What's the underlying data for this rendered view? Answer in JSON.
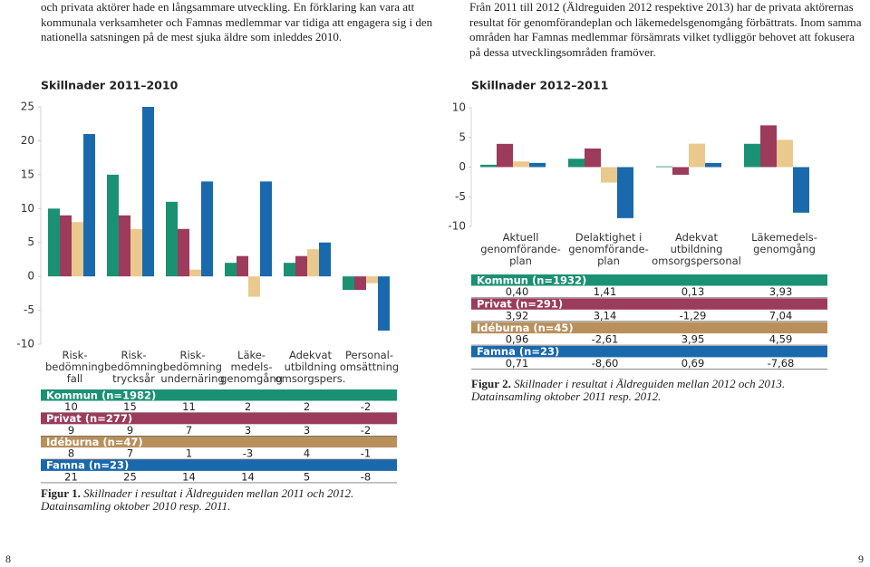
{
  "page": {
    "left_text": [
      "och privata aktörer hade en långsammare utveckling. En förklaring kan vara att",
      "kommunala verksamheter och Famnas medlemmar var tidiga att engagera sig i den",
      "nationella satsningen på de mest sjuka äldre som inleddes 2010."
    ],
    "right_text": [
      "Från 2011 till 2012 (Äldreguiden 2012 respektive 2013) har de privata aktörernas",
      "resultat för genomförandeplan och läkemedelsgenomgång förbättrats. Inom samma",
      "områden har Famnas medlemmar försämrats vilket tydliggör behovet att fokusera",
      "på dessa utvecklingsområden framöver."
    ],
    "page_numbers": [
      8,
      9
    ]
  },
  "chart_data": [
    {
      "type": "bar",
      "title": "Skillnader 2011–2010",
      "categories": [
        "Risk-\nbedömning\nfall",
        "Risk-\nbedömning\ntrycksår",
        "Risk-\nbedömning\nundernäring",
        "Läke-\nmedels-\ngenomgång",
        "Adekvat\nutbildning\nomsorgspers.",
        "Personal-\nomsättning"
      ],
      "series": [
        {
          "name": "Kommun (n=1982)",
          "color": "#1b9173",
          "band_color": "#1b9173",
          "values": [
            10,
            15,
            11,
            2,
            2,
            -2
          ]
        },
        {
          "name": "Privat (n=277)",
          "color": "#9c3b5c",
          "band_color": "#9c3b5c",
          "values": [
            9,
            9,
            7,
            3,
            3,
            -2
          ]
        },
        {
          "name": "Idéburna (n=47)",
          "color": "#e9c98d",
          "band_color": "#b9905c",
          "values": [
            8,
            7,
            1,
            -3,
            4,
            -1
          ]
        },
        {
          "name": "Famna (n=23)",
          "color": "#1a69ad",
          "band_color": "#1a69ad",
          "values": [
            21,
            25,
            14,
            14,
            5,
            -8
          ]
        }
      ],
      "ylim": [
        -10,
        25
      ],
      "yticks": [
        25,
        20,
        15,
        10,
        5,
        0,
        -5,
        -10
      ],
      "grid": false,
      "caption": {
        "label": "Figur 1.",
        "lines": [
          "Skillnader i resultat i Äldreguiden mellan 2011 och 2012.",
          "Datainsamling oktober 2010 resp. 2011."
        ]
      }
    },
    {
      "type": "bar",
      "title": "Skillnader 2012–2011",
      "categories": [
        "Aktuell\ngenomförande-\nplan",
        "Delaktighet i\ngenomförande-\nplan",
        "Adekvat\nutbildning\nomsorgspersonal",
        "Läkemedels-\ngenomgång"
      ],
      "series": [
        {
          "name": "Kommun (n=1932)",
          "color": "#1b9173",
          "band_color": "#1b9173",
          "values": [
            0.4,
            1.41,
            0.13,
            3.93
          ],
          "value_labels": [
            "0,40",
            "1,41",
            "0,13",
            "3,93"
          ]
        },
        {
          "name": "Privat (n=291)",
          "color": "#9c3b5c",
          "band_color": "#9c3b5c",
          "values": [
            3.92,
            3.14,
            -1.29,
            7.04
          ],
          "value_labels": [
            "3,92",
            "3,14",
            "-1,29",
            "7,04"
          ]
        },
        {
          "name": "Idéburna (n=45)",
          "color": "#e9c98d",
          "band_color": "#b9905c",
          "values": [
            0.96,
            -2.61,
            3.95,
            4.59
          ],
          "value_labels": [
            "0,96",
            "-2,61",
            "3,95",
            "4,59"
          ]
        },
        {
          "name": "Famna (n=23)",
          "color": "#1a69ad",
          "band_color": "#1a69ad",
          "values": [
            0.71,
            -8.6,
            0.69,
            -7.68
          ],
          "value_labels": [
            "0,71",
            "-8,60",
            "0,69",
            "-7,68"
          ]
        }
      ],
      "ylim": [
        -10,
        10
      ],
      "yticks": [
        10,
        5,
        0,
        -5,
        -10
      ],
      "grid": false,
      "caption": {
        "label": "Figur 2.",
        "lines": [
          "Skillnader i resultat i Äldreguiden mellan 2012 och 2013.",
          "Datainsamling oktober 2011 resp. 2012."
        ]
      }
    }
  ]
}
